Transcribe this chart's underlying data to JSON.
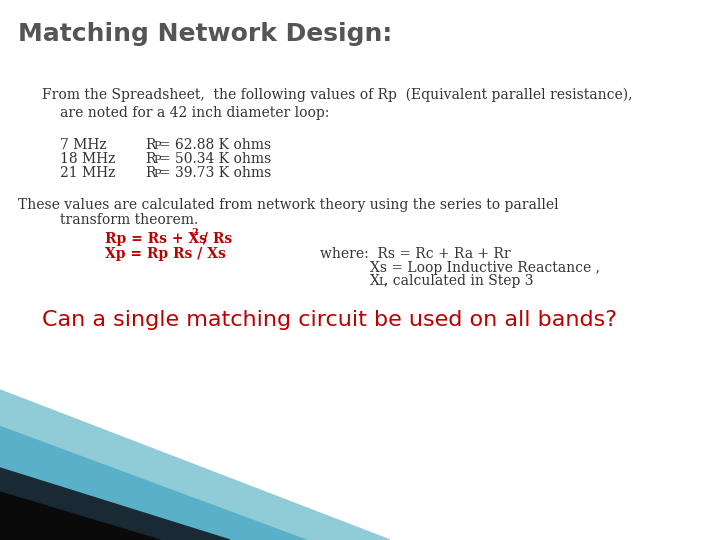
{
  "title": "Matching Network Design:",
  "title_color": "#555555",
  "title_fontsize": 18,
  "bg_color": "#ffffff",
  "line1": "From the Spreadsheet,  the following values of Rp  (Equivalent parallel resistance),",
  "line2": "are noted for a 42 inch diameter loop:",
  "freq_rows": [
    [
      "7 MHz",
      "= 62.88 K ohms"
    ],
    [
      "18 MHz",
      "= 50.34 K ohms"
    ],
    [
      "21 MHz",
      "= 39.73 K ohms"
    ]
  ],
  "theory_line1": "These values are calculated from network theory using the series to parallel",
  "theory_line2": "transform theorem.",
  "formula1_main": "Rp = Rs + Xs",
  "formula1_sup": "2",
  "formula1_end": " / Rs",
  "formula2": "Xp = Rp Rs / Xs",
  "formula_color": "#bb0000",
  "where_text": "where:  Rs = Rc + Ra + Rr",
  "xs_line": "Xs = Loop Inductive Reactance ,",
  "xl_main": ", calculated in Step 3",
  "question": "Can a single matching circuit be used on all bands?",
  "question_color": "#bb0000",
  "question_fontsize": 16,
  "body_fontsize": 10,
  "body_color": "#333333",
  "serif_font": "DejaVu Serif",
  "sans_font": "DejaVu Sans"
}
